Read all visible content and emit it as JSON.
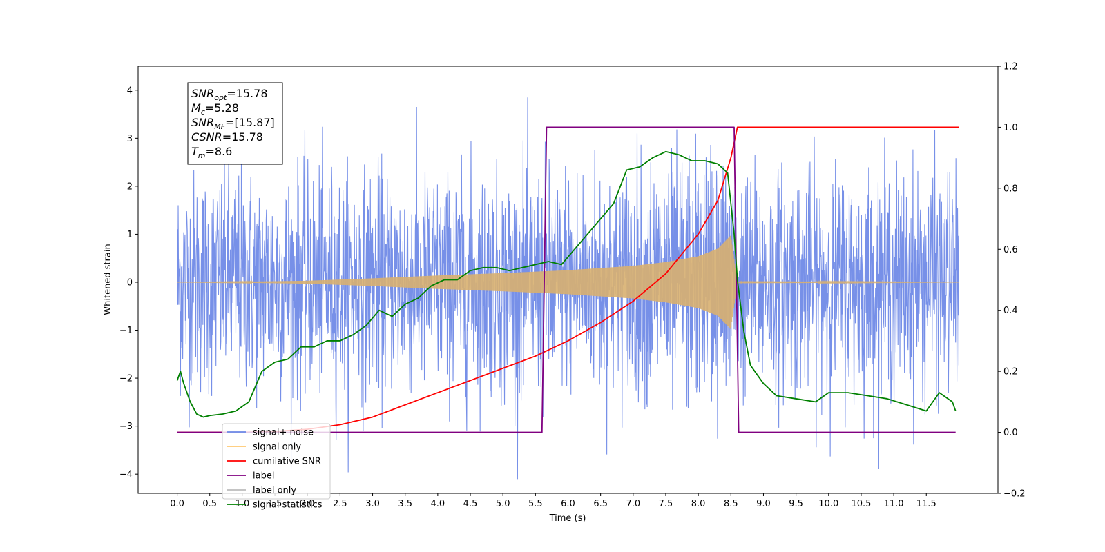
{
  "chart_data": {
    "type": "line",
    "xlabel": "Time (s)",
    "ylabel": "Whitened strain",
    "xlim": [
      -0.6,
      12.6
    ],
    "ylim": [
      -4.4,
      4.5
    ],
    "ylim_right": [
      -0.2,
      1.2
    ],
    "x_ticks": [
      0.0,
      0.5,
      1.0,
      1.5,
      2.0,
      2.5,
      3.0,
      3.5,
      4.0,
      4.5,
      5.0,
      5.5,
      6.0,
      6.5,
      7.0,
      7.5,
      8.0,
      8.5,
      9.0,
      9.5,
      10.0,
      10.5,
      11.0,
      11.5
    ],
    "x_tick_labels": [
      "0.0",
      "0.5",
      "1.0",
      "1.5",
      "2.0",
      "2.5",
      "3.0",
      "3.5",
      "4.0",
      "4.5",
      "5.0",
      "5.5",
      "6.0",
      "6.5",
      "7.0",
      "7.5",
      "8.0",
      "8.5",
      "9.0",
      "9.5",
      "10.0",
      "10.5",
      "11.0",
      "11.5"
    ],
    "y_ticks": [
      -4,
      -3,
      -2,
      -1,
      0,
      1,
      2,
      3,
      4
    ],
    "y_tick_labels": [
      "−4",
      "−3",
      "−2",
      "−1",
      "0",
      "1",
      "2",
      "3",
      "4"
    ],
    "y_ticks_right": [
      -0.2,
      0.0,
      0.2,
      0.4,
      0.6,
      0.8,
      1.0,
      1.2
    ],
    "y_tick_labels_right": [
      "−0.2",
      "0.0",
      "0.2",
      "0.4",
      "0.6",
      "0.8",
      "1.0",
      "1.2"
    ],
    "legend_placement": "lower-left",
    "legend": [
      {
        "label": "signal+ noise",
        "color": "#6b87e6"
      },
      {
        "label": "signal only",
        "color": "#ffc870"
      },
      {
        "label": "cumilative SNR",
        "color": "#ff0000"
      },
      {
        "label": "label",
        "color": "#800080"
      },
      {
        "label": "label only",
        "color": "#bbbbbb"
      },
      {
        "label": "signal statistics",
        "color": "#008000"
      }
    ],
    "annotations": [
      {
        "base": "SNR",
        "sub": "opt",
        "value": "=15.78"
      },
      {
        "base": "M",
        "sub": "c",
        "value": "=5.28"
      },
      {
        "base": "SNR",
        "sub": "MF",
        "value": "=[15.87]"
      },
      {
        "base": "CSNR",
        "sub": "",
        "value": "=15.78"
      },
      {
        "base": "T",
        "sub": "m",
        "value": "=8.6"
      }
    ],
    "series": [
      {
        "name": "signal+ noise",
        "axis": "left",
        "color": "#6b87e6",
        "description_x_range": [
          0.0,
          12.0
        ],
        "noise_band": [
          -2.4,
          2.4
        ],
        "observed_extremes": {
          "max": 4.1,
          "min": -3.9
        }
      },
      {
        "name": "signal only",
        "axis": "left",
        "color": "#d8b070",
        "envelope": {
          "x": [
            0.0,
            1.0,
            2.0,
            3.0,
            4.0,
            5.0,
            6.0,
            7.0,
            7.5,
            8.0,
            8.3,
            8.5,
            8.6,
            8.7,
            12.0
          ],
          "amp": [
            0.0,
            0.01,
            0.03,
            0.08,
            0.14,
            0.19,
            0.25,
            0.34,
            0.42,
            0.54,
            0.7,
            0.98,
            0.0,
            0.02,
            0.0
          ]
        }
      },
      {
        "name": "cumilative SNR",
        "axis": "right",
        "color": "#ff0000",
        "x": [
          0.0,
          1.0,
          1.5,
          2.0,
          2.5,
          3.0,
          3.5,
          4.0,
          4.5,
          5.0,
          5.5,
          6.0,
          6.5,
          7.0,
          7.5,
          8.0,
          8.3,
          8.5,
          8.6,
          12.0
        ],
        "y": [
          0.0,
          0.0,
          0.003,
          0.01,
          0.025,
          0.05,
          0.09,
          0.13,
          0.17,
          0.21,
          0.25,
          0.3,
          0.36,
          0.43,
          0.52,
          0.65,
          0.76,
          0.9,
          1.0,
          1.0
        ]
      },
      {
        "name": "label",
        "axis": "right",
        "color": "#800080",
        "x": [
          0.0,
          5.6,
          5.67,
          8.55,
          8.62,
          11.95
        ],
        "y": [
          0.0,
          0.0,
          1.0,
          1.0,
          0.0,
          0.0
        ]
      },
      {
        "name": "signal statistics",
        "axis": "right",
        "color": "#008000",
        "x": [
          0.0,
          0.05,
          0.1,
          0.2,
          0.3,
          0.4,
          0.5,
          0.7,
          0.9,
          1.1,
          1.3,
          1.5,
          1.7,
          1.9,
          2.1,
          2.3,
          2.5,
          2.7,
          2.9,
          3.1,
          3.3,
          3.5,
          3.7,
          3.9,
          4.1,
          4.3,
          4.5,
          4.7,
          4.9,
          5.1,
          5.3,
          5.5,
          5.7,
          5.9,
          6.1,
          6.3,
          6.5,
          6.7,
          6.9,
          7.1,
          7.3,
          7.5,
          7.7,
          7.9,
          8.1,
          8.3,
          8.45,
          8.55,
          8.6,
          8.7,
          8.8,
          9.0,
          9.2,
          9.5,
          9.8,
          10.0,
          10.3,
          10.6,
          10.9,
          11.2,
          11.5,
          11.7,
          11.9,
          11.95
        ],
        "y": [
          0.17,
          0.2,
          0.16,
          0.1,
          0.06,
          0.05,
          0.055,
          0.06,
          0.07,
          0.1,
          0.2,
          0.23,
          0.24,
          0.28,
          0.28,
          0.3,
          0.3,
          0.32,
          0.35,
          0.4,
          0.38,
          0.42,
          0.44,
          0.48,
          0.5,
          0.5,
          0.53,
          0.54,
          0.54,
          0.53,
          0.54,
          0.55,
          0.56,
          0.55,
          0.6,
          0.65,
          0.7,
          0.75,
          0.86,
          0.87,
          0.9,
          0.92,
          0.91,
          0.89,
          0.89,
          0.88,
          0.85,
          0.65,
          0.5,
          0.33,
          0.22,
          0.16,
          0.12,
          0.11,
          0.1,
          0.13,
          0.13,
          0.12,
          0.11,
          0.09,
          0.07,
          0.13,
          0.1,
          0.07
        ]
      }
    ]
  }
}
